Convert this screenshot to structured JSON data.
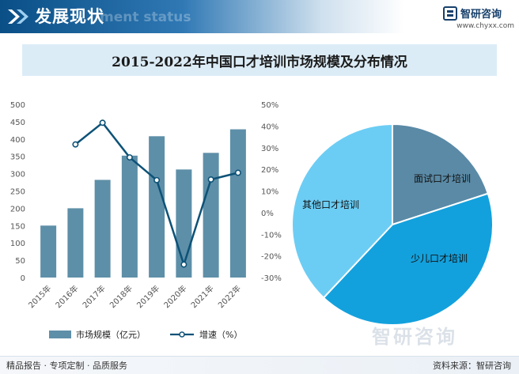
{
  "header": {
    "title": "发展现状",
    "watermark": "ment status"
  },
  "brand": {
    "name": "智研咨询",
    "url": "www.chyxx.com",
    "watermark": "智研咨询"
  },
  "colors": {
    "header_blue": "#0a4f86",
    "bar": "#5e8fa8",
    "line": "#0d5277",
    "pie_interview": "#5a8aa6",
    "pie_children": "#13a1dd",
    "pie_other": "#6ccdf4"
  },
  "chart_data": [
    {
      "type": "bar+line",
      "title": "2015-2022年中国口才培训市场规模及分布情况",
      "categories": [
        "2015年",
        "2016年",
        "2017年",
        "2018年",
        "2019年",
        "2020年",
        "2021年",
        "2022年"
      ],
      "series": [
        {
          "name": "市场规模（亿元）",
          "type": "bar",
          "axis": "left",
          "values": [
            150,
            200,
            282,
            352,
            408,
            312,
            360,
            428
          ]
        },
        {
          "name": "增速（%）",
          "type": "line",
          "axis": "right",
          "values": [
            null,
            31.5,
            41.5,
            25.5,
            15,
            -24,
            15.3,
            18.4
          ]
        }
      ],
      "y_left": {
        "min": 0,
        "max": 500,
        "ticks": [
          0,
          50,
          100,
          150,
          200,
          250,
          300,
          350,
          400,
          450,
          500
        ]
      },
      "y_right": {
        "min": -30,
        "max": 50,
        "ticks": [
          "-30%",
          "-20%",
          "-10%",
          "0%",
          "10%",
          "20%",
          "30%",
          "40%",
          "50%"
        ]
      },
      "legend_position": "bottom",
      "grid": false
    },
    {
      "type": "pie",
      "slices": [
        {
          "label": "面试口才培训",
          "value": 20
        },
        {
          "label": "少儿口才培训",
          "value": 42
        },
        {
          "label": "其他口才培训",
          "value": 38
        }
      ]
    }
  ],
  "footer": {
    "left": "精品报告 · 专项定制 · 品质服务",
    "right": "资料来源：智研咨询"
  }
}
